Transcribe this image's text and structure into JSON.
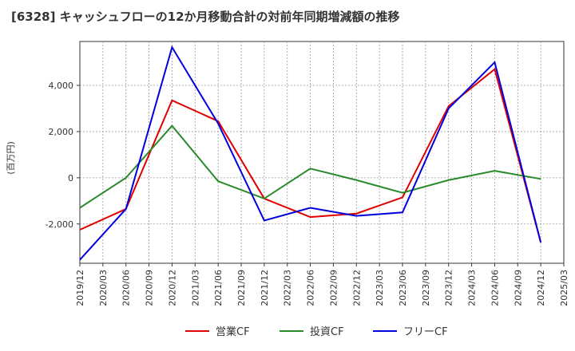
{
  "title": "[6328]  キャッシュフローの12か月移動合計の対前年同期増減額の推移",
  "chart_data": {
    "type": "line",
    "ylabel": "(百万円)",
    "ylim": [
      -3700,
      5900
    ],
    "yticks": [
      -2000,
      0,
      2000,
      4000
    ],
    "ytick_labels": [
      "-2,000",
      "0",
      "2,000",
      "4,000"
    ],
    "x_ticks": [
      "2019/12",
      "2020/03",
      "2020/06",
      "2020/09",
      "2020/12",
      "2021/03",
      "2021/06",
      "2021/09",
      "2021/12",
      "2022/03",
      "2022/06",
      "2022/09",
      "2022/12",
      "2023/03",
      "2023/06",
      "2023/09",
      "2023/12",
      "2024/03",
      "2024/06",
      "2024/09",
      "2024/12",
      "2025/03"
    ],
    "grid": true,
    "legend_position": "bottom",
    "series": [
      {
        "name": "営業CF",
        "color": "#e00000",
        "x": [
          "2019/12",
          "2020/06",
          "2020/12",
          "2021/06",
          "2021/12",
          "2022/06",
          "2022/12",
          "2023/06",
          "2023/12",
          "2024/06",
          "2024/12"
        ],
        "values": [
          -2250,
          -1350,
          3350,
          2450,
          -900,
          -1700,
          -1550,
          -850,
          3100,
          4700,
          -2800
        ]
      },
      {
        "name": "投資CF",
        "color": "#2a8a2a",
        "x": [
          "2019/12",
          "2020/06",
          "2020/12",
          "2021/06",
          "2021/12",
          "2022/06",
          "2022/12",
          "2023/06",
          "2023/12",
          "2024/06",
          "2024/12"
        ],
        "values": [
          -1300,
          0,
          2250,
          -150,
          -900,
          400,
          -100,
          -650,
          -100,
          300,
          -50
        ]
      },
      {
        "name": "フリーCF",
        "color": "#0000dd",
        "x": [
          "2019/12",
          "2020/06",
          "2020/12",
          "2021/06",
          "2021/12",
          "2022/06",
          "2022/12",
          "2023/06",
          "2023/12",
          "2024/06",
          "2024/12"
        ],
        "values": [
          -3550,
          -1350,
          5650,
          2350,
          -1850,
          -1300,
          -1650,
          -1500,
          3000,
          5000,
          -2800
        ]
      }
    ]
  }
}
